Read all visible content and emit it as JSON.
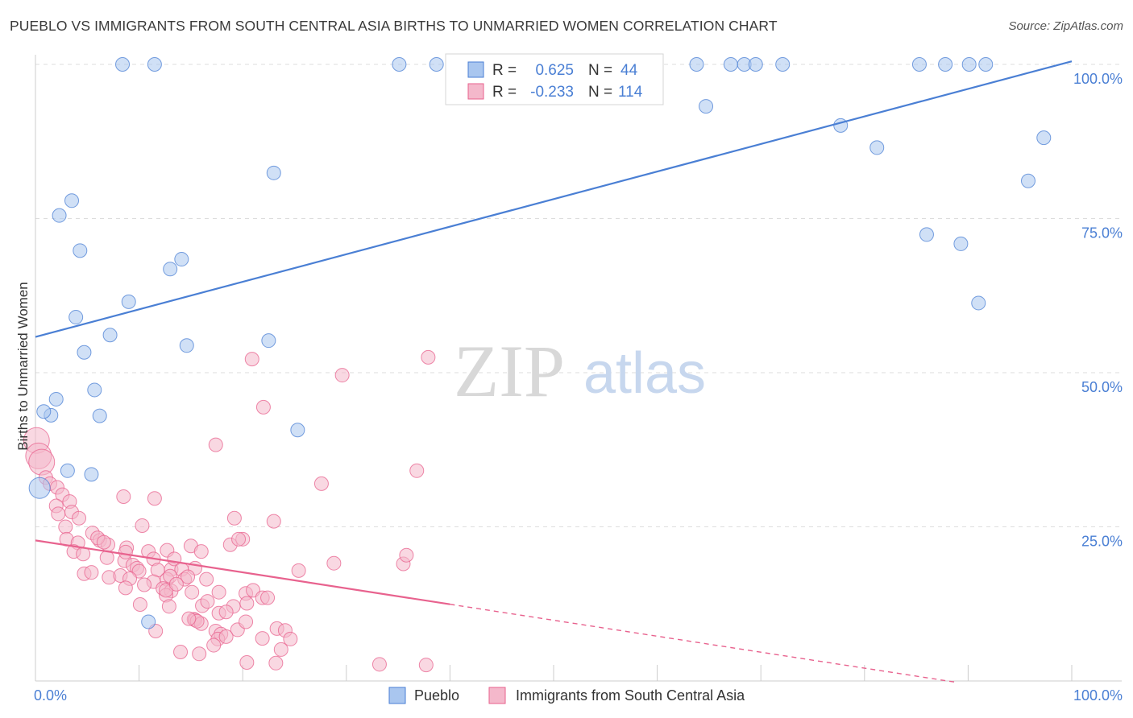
{
  "title": "PUEBLO VS IMMIGRANTS FROM SOUTH CENTRAL ASIA BIRTHS TO UNMARRIED WOMEN CORRELATION CHART",
  "source": "Source: ZipAtlas.com",
  "watermark": {
    "zip": "ZIP",
    "atlas": "atlas"
  },
  "colors": {
    "blue": "#4a7fd4",
    "blue_fill": "#a9c6ef",
    "pink": "#e8628e",
    "pink_fill": "#f4b8cb",
    "grid": "#dddddd",
    "tick_label": "#4a7fd4"
  },
  "chart_data": {
    "type": "scatter",
    "title": "PUEBLO VS IMMIGRANTS FROM SOUTH CENTRAL ASIA BIRTHS TO UNMARRIED WOMEN CORRELATION CHART",
    "xlabel": "",
    "ylabel": "Births to Unmarried Women",
    "xlim": [
      0,
      100
    ],
    "ylim": [
      0,
      100
    ],
    "x_tick_labels": [
      {
        "value": 0,
        "label": "0.0%"
      },
      {
        "value": 100,
        "label": "100.0%"
      }
    ],
    "y_tick_labels": [
      {
        "value": 25,
        "label": "25.0%"
      },
      {
        "value": 50,
        "label": "50.0%"
      },
      {
        "value": 75,
        "label": "75.0%"
      },
      {
        "value": 100,
        "label": "100.0%"
      }
    ],
    "legend": {
      "placement": "top-center",
      "entries": [
        {
          "r_label": "R =",
          "r_value": "0.625",
          "n_label": "N =",
          "n_value": "44"
        },
        {
          "r_label": "R =",
          "r_value": "-0.233",
          "n_label": "N =",
          "n_value": "114"
        }
      ]
    },
    "bottom_legend": [
      "Pueblo",
      "Immigrants from South Central Asia"
    ],
    "series": [
      {
        "name": "Pueblo",
        "color": "#4a7fd4",
        "trend": {
          "x": [
            0,
            100
          ],
          "y": [
            55.8,
            100.5
          ],
          "dashed_from": null
        },
        "points": [
          [
            8.4,
            100
          ],
          [
            11.5,
            100
          ],
          [
            35.1,
            100
          ],
          [
            38.7,
            100
          ],
          [
            41.0,
            100
          ],
          [
            63.8,
            100
          ],
          [
            67.1,
            100
          ],
          [
            68.4,
            100
          ],
          [
            69.5,
            100
          ],
          [
            72.1,
            100
          ],
          [
            85.3,
            100
          ],
          [
            87.8,
            100
          ],
          [
            90.1,
            100
          ],
          [
            91.7,
            100
          ],
          [
            64.7,
            93.2
          ],
          [
            77.7,
            90.1
          ],
          [
            81.2,
            86.5
          ],
          [
            97.3,
            88.1
          ],
          [
            23.0,
            82.4
          ],
          [
            95.8,
            81.1
          ],
          [
            3.5,
            77.9
          ],
          [
            2.3,
            75.5
          ],
          [
            86.0,
            72.4
          ],
          [
            89.3,
            70.9
          ],
          [
            4.3,
            69.8
          ],
          [
            13.0,
            66.8
          ],
          [
            14.1,
            68.4
          ],
          [
            91.0,
            61.3
          ],
          [
            9.0,
            61.5
          ],
          [
            3.9,
            59.0
          ],
          [
            7.2,
            56.1
          ],
          [
            22.5,
            55.2
          ],
          [
            14.6,
            54.4
          ],
          [
            4.7,
            53.3
          ],
          [
            5.7,
            47.2
          ],
          [
            2.0,
            45.7
          ],
          [
            1.5,
            43.1
          ],
          [
            6.2,
            43.0
          ],
          [
            25.3,
            40.7
          ],
          [
            0.8,
            43.7
          ],
          [
            3.1,
            34.1
          ],
          [
            5.4,
            33.5
          ],
          [
            0.4,
            31.3
          ],
          [
            10.9,
            9.6
          ]
        ]
      },
      {
        "name": "Immigrants from South Central Asia",
        "color": "#e8628e",
        "trend": {
          "x": [
            0,
            100
          ],
          "y": [
            22.8,
            -3.1
          ],
          "dashed_from": 40
        },
        "points": [
          [
            0.1,
            39.0
          ],
          [
            0.3,
            36.5
          ],
          [
            0.6,
            35.5
          ],
          [
            1.0,
            33.0
          ],
          [
            1.4,
            32.0
          ],
          [
            2.1,
            31.4
          ],
          [
            2.6,
            30.2
          ],
          [
            3.3,
            29.1
          ],
          [
            2.0,
            28.4
          ],
          [
            2.2,
            27.1
          ],
          [
            3.5,
            27.4
          ],
          [
            4.2,
            26.4
          ],
          [
            2.9,
            25.0
          ],
          [
            5.5,
            24.0
          ],
          [
            3.0,
            23.0
          ],
          [
            6.2,
            22.8
          ],
          [
            7.0,
            22.1
          ],
          [
            6.0,
            23.2
          ],
          [
            6.6,
            22.5
          ],
          [
            4.1,
            22.4
          ],
          [
            3.7,
            21.0
          ],
          [
            4.6,
            20.6
          ],
          [
            8.8,
            21.6
          ],
          [
            10.9,
            21.0
          ],
          [
            12.7,
            21.2
          ],
          [
            15.0,
            21.9
          ],
          [
            16.0,
            21.0
          ],
          [
            18.8,
            22.1
          ],
          [
            20.0,
            23.0
          ],
          [
            8.6,
            19.5
          ],
          [
            9.4,
            18.8
          ],
          [
            9.8,
            18.3
          ],
          [
            10.0,
            17.8
          ],
          [
            11.4,
            19.8
          ],
          [
            11.8,
            18.0
          ],
          [
            13.1,
            18.1
          ],
          [
            13.4,
            19.8
          ],
          [
            14.1,
            18.1
          ],
          [
            15.4,
            18.3
          ],
          [
            4.7,
            17.4
          ],
          [
            5.4,
            17.6
          ],
          [
            7.1,
            16.8
          ],
          [
            8.2,
            17.1
          ],
          [
            9.1,
            16.6
          ],
          [
            11.4,
            16.1
          ],
          [
            12.7,
            16.5
          ],
          [
            13.0,
            17.0
          ],
          [
            14.4,
            16.5
          ],
          [
            14.7,
            16.9
          ],
          [
            16.5,
            16.5
          ],
          [
            8.7,
            15.1
          ],
          [
            10.5,
            15.6
          ],
          [
            12.3,
            15.0
          ],
          [
            13.1,
            14.6
          ],
          [
            15.1,
            14.4
          ],
          [
            17.7,
            14.4
          ],
          [
            20.3,
            14.2
          ],
          [
            21.0,
            14.7
          ],
          [
            21.9,
            13.5
          ],
          [
            22.4,
            13.5
          ],
          [
            12.6,
            13.9
          ],
          [
            12.6,
            14.7
          ],
          [
            13.6,
            15.7
          ],
          [
            10.1,
            12.4
          ],
          [
            12.9,
            12.1
          ],
          [
            16.1,
            12.2
          ],
          [
            16.6,
            12.9
          ],
          [
            19.1,
            12.1
          ],
          [
            20.4,
            12.6
          ],
          [
            17.7,
            11.0
          ],
          [
            15.3,
            10.0
          ],
          [
            15.4,
            9.9
          ],
          [
            16.0,
            9.3
          ],
          [
            19.5,
            8.3
          ],
          [
            20.3,
            9.6
          ],
          [
            23.3,
            8.5
          ],
          [
            24.1,
            8.2
          ],
          [
            24.6,
            6.8
          ],
          [
            21.9,
            6.9
          ],
          [
            17.4,
            8.1
          ],
          [
            17.9,
            7.6
          ],
          [
            17.6,
            6.8
          ],
          [
            18.4,
            7.2
          ],
          [
            15.6,
            9.7
          ],
          [
            17.2,
            5.8
          ],
          [
            14.0,
            4.7
          ],
          [
            15.8,
            4.4
          ],
          [
            23.7,
            5.1
          ],
          [
            20.4,
            3.0
          ],
          [
            23.2,
            2.9
          ],
          [
            33.2,
            2.7
          ],
          [
            37.7,
            2.6
          ],
          [
            11.6,
            8.1
          ],
          [
            14.8,
            10.1
          ],
          [
            18.4,
            11.2
          ],
          [
            8.5,
            29.9
          ],
          [
            11.5,
            29.6
          ],
          [
            19.2,
            26.4
          ],
          [
            23.0,
            25.9
          ],
          [
            10.3,
            25.2
          ],
          [
            19.6,
            23.0
          ],
          [
            28.8,
            19.1
          ],
          [
            35.5,
            19.0
          ],
          [
            35.8,
            20.4
          ],
          [
            25.4,
            17.9
          ],
          [
            29.6,
            49.6
          ],
          [
            37.9,
            52.5
          ],
          [
            20.9,
            52.2
          ],
          [
            22.0,
            44.4
          ],
          [
            17.4,
            38.3
          ],
          [
            36.8,
            34.1
          ],
          [
            27.6,
            32.0
          ],
          [
            8.7,
            20.9
          ],
          [
            6.9,
            20.0
          ]
        ]
      }
    ]
  }
}
